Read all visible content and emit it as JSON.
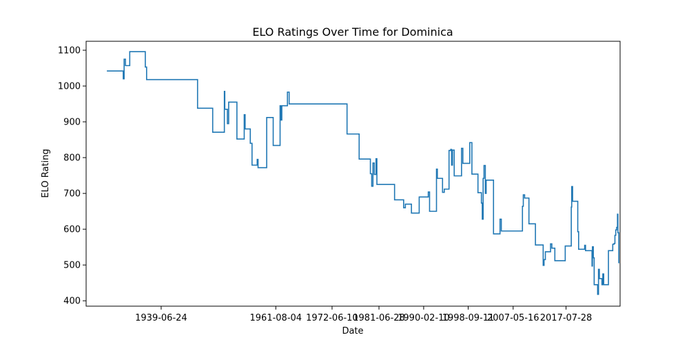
{
  "chart_data": {
    "type": "line",
    "title": "ELO Ratings Over Time for Dominica",
    "xlabel": "Date",
    "ylabel": "ELO Rating",
    "x_tick_labels": [
      "1939-06-24",
      "1961-08-04",
      "1972-06-10",
      "1981-06-28",
      "1990-02-10",
      "1998-09-11",
      "2007-05-16",
      "2017-07-28"
    ],
    "y_ticks": [
      400,
      500,
      600,
      700,
      800,
      900,
      1000,
      1100
    ],
    "xlim": [
      "1925-01-01",
      "2028-01-01"
    ],
    "ylim": [
      385,
      1125
    ],
    "grid": false,
    "line_color": "#1f77b4",
    "series": [
      {
        "step": true,
        "points": [
          [
            "1929-01-01",
            1042
          ],
          [
            "1931-12-01",
            1042
          ],
          [
            "1932-03-01",
            1020
          ],
          [
            "1932-05-01",
            1075
          ],
          [
            "1932-08-01",
            1057
          ],
          [
            "1933-06-01",
            1096
          ],
          [
            "1936-01-01",
            1096
          ],
          [
            "1936-06-01",
            1053
          ],
          [
            "1936-09-01",
            1018
          ],
          [
            "1946-01-01",
            1018
          ],
          [
            "1946-07-01",
            938
          ],
          [
            "1949-01-01",
            938
          ],
          [
            "1949-06-01",
            871
          ],
          [
            "1951-06-01",
            871
          ],
          [
            "1951-09-01",
            985
          ],
          [
            "1951-10-01",
            935
          ],
          [
            "1952-04-01",
            895
          ],
          [
            "1952-07-01",
            955
          ],
          [
            "1953-10-01",
            955
          ],
          [
            "1954-02-01",
            852
          ],
          [
            "1955-05-01",
            852
          ],
          [
            "1955-07-01",
            920
          ],
          [
            "1955-09-01",
            880
          ],
          [
            "1956-05-01",
            880
          ],
          [
            "1956-09-01",
            840
          ],
          [
            "1957-01-01",
            779
          ],
          [
            "1957-09-01",
            779
          ],
          [
            "1958-01-01",
            795
          ],
          [
            "1958-03-01",
            772
          ],
          [
            "1959-06-01",
            772
          ],
          [
            "1959-11-01",
            912
          ],
          [
            "1960-11-01",
            912
          ],
          [
            "1961-02-01",
            834
          ],
          [
            "1962-03-01",
            834
          ],
          [
            "1962-06-01",
            945
          ],
          [
            "1962-08-01",
            905
          ],
          [
            "1962-10-01",
            945
          ],
          [
            "1963-09-01",
            945
          ],
          [
            "1963-11-01",
            983
          ],
          [
            "1964-03-01",
            950
          ],
          [
            "1975-01-01",
            950
          ],
          [
            "1975-05-01",
            866
          ],
          [
            "1977-05-01",
            866
          ],
          [
            "1977-09-01",
            796
          ],
          [
            "1979-09-01",
            796
          ],
          [
            "1979-11-01",
            755
          ],
          [
            "1980-02-01",
            720
          ],
          [
            "1980-05-01",
            785
          ],
          [
            "1980-08-01",
            753
          ],
          [
            "1980-12-01",
            797
          ],
          [
            "1981-02-01",
            725
          ],
          [
            "1984-03-01",
            725
          ],
          [
            "1984-07-01",
            682
          ],
          [
            "1986-01-01",
            682
          ],
          [
            "1986-04-01",
            660
          ],
          [
            "1986-08-01",
            670
          ],
          [
            "1987-06-01",
            670
          ],
          [
            "1987-10-01",
            645
          ],
          [
            "1988-12-01",
            645
          ],
          [
            "1989-04-01",
            690
          ],
          [
            "1990-10-01",
            690
          ],
          [
            "1991-01-01",
            704
          ],
          [
            "1991-04-01",
            650
          ],
          [
            "1992-05-01",
            650
          ],
          [
            "1992-08-01",
            768
          ],
          [
            "1992-10-01",
            742
          ],
          [
            "1993-08-01",
            742
          ],
          [
            "1993-10-01",
            703
          ],
          [
            "1994-02-01",
            712
          ],
          [
            "1994-09-01",
            712
          ],
          [
            "1995-01-01",
            820
          ],
          [
            "1995-05-01",
            823
          ],
          [
            "1995-07-01",
            779
          ],
          [
            "1995-09-01",
            821
          ],
          [
            "1996-01-01",
            749
          ],
          [
            "1997-03-01",
            749
          ],
          [
            "1997-06-01",
            826
          ],
          [
            "1997-09-01",
            784
          ],
          [
            "1998-10-01",
            784
          ],
          [
            "1999-01-01",
            842
          ],
          [
            "1999-06-01",
            754
          ],
          [
            "2000-05-01",
            754
          ],
          [
            "2000-08-01",
            702
          ],
          [
            "2001-01-01",
            702
          ],
          [
            "2001-04-01",
            673
          ],
          [
            "2001-06-01",
            628
          ],
          [
            "2001-08-01",
            742
          ],
          [
            "2001-10-01",
            778
          ],
          [
            "2002-01-01",
            700
          ],
          [
            "2002-03-01",
            737
          ],
          [
            "2003-05-01",
            737
          ],
          [
            "2003-08-01",
            587
          ],
          [
            "2004-09-01",
            587
          ],
          [
            "2004-11-01",
            628
          ],
          [
            "2005-02-01",
            595
          ],
          [
            "2009-01-01",
            595
          ],
          [
            "2009-03-01",
            664
          ],
          [
            "2009-05-01",
            696
          ],
          [
            "2009-08-01",
            687
          ],
          [
            "2010-03-01",
            687
          ],
          [
            "2010-06-01",
            615
          ],
          [
            "2011-06-01",
            615
          ],
          [
            "2011-09-01",
            556
          ],
          [
            "2013-01-01",
            556
          ],
          [
            "2013-03-01",
            499
          ],
          [
            "2013-05-01",
            515
          ],
          [
            "2013-08-01",
            537
          ],
          [
            "2014-06-01",
            537
          ],
          [
            "2014-08-01",
            559
          ],
          [
            "2014-11-01",
            547
          ],
          [
            "2015-04-01",
            547
          ],
          [
            "2015-06-01",
            512
          ],
          [
            "2017-03-01",
            512
          ],
          [
            "2017-06-01",
            553
          ],
          [
            "2018-06-01",
            553
          ],
          [
            "2018-08-01",
            662
          ],
          [
            "2018-09-01",
            719
          ],
          [
            "2018-11-01",
            678
          ],
          [
            "2019-09-01",
            678
          ],
          [
            "2019-11-01",
            593
          ],
          [
            "2020-01-01",
            544
          ],
          [
            "2021-01-01",
            544
          ],
          [
            "2021-03-01",
            555
          ],
          [
            "2021-05-01",
            540
          ],
          [
            "2022-06-01",
            540
          ],
          [
            "2022-08-01",
            497
          ],
          [
            "2022-09-01",
            551
          ],
          [
            "2022-11-01",
            520
          ],
          [
            "2023-01-01",
            445
          ],
          [
            "2023-07-01",
            445
          ],
          [
            "2023-09-01",
            418
          ],
          [
            "2023-11-01",
            488
          ],
          [
            "2024-01-01",
            462
          ],
          [
            "2024-05-01",
            462
          ],
          [
            "2024-07-01",
            445
          ],
          [
            "2024-09-01",
            475
          ],
          [
            "2024-11-01",
            445
          ],
          [
            "2025-08-01",
            445
          ],
          [
            "2025-10-01",
            540
          ],
          [
            "2026-06-01",
            540
          ],
          [
            "2026-08-01",
            558
          ],
          [
            "2026-11-01",
            560
          ],
          [
            "2027-01-01",
            583
          ],
          [
            "2027-03-01",
            598
          ],
          [
            "2027-05-01",
            605
          ],
          [
            "2027-07-01",
            642
          ],
          [
            "2027-08-01",
            590
          ],
          [
            "2027-10-01",
            505
          ]
        ]
      }
    ]
  }
}
